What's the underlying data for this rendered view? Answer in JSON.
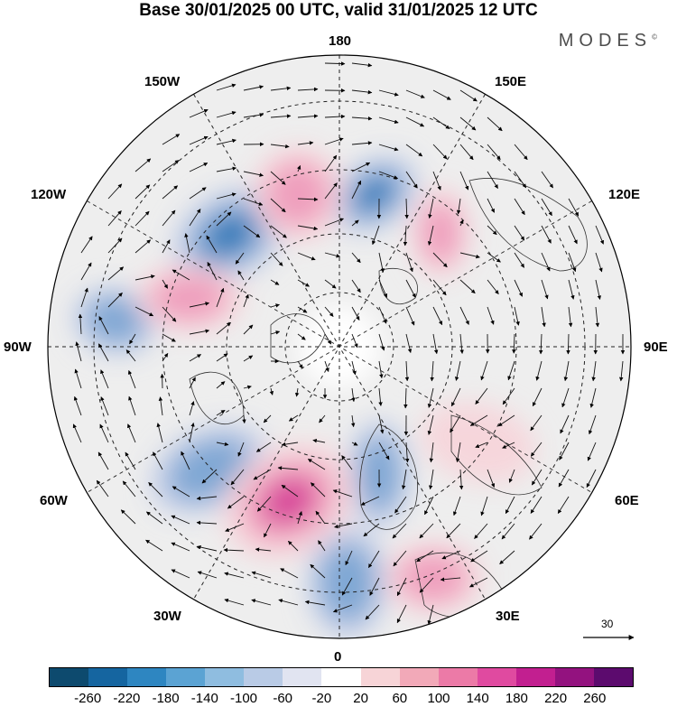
{
  "title": "Base 30/01/2025 00 UTC, valid 31/01/2025 12 UTC",
  "brand": "MODES",
  "brand_mark": "©",
  "longitude_labels": {
    "top": "180",
    "bottom": "0",
    "left": "90W",
    "right": "90E",
    "upper_left_1": "150W",
    "upper_left_2": "120W",
    "upper_right_1": "150E",
    "upper_right_2": "120E",
    "lower_left_1": "60W",
    "lower_left_2": "30W",
    "lower_right_1": "60E",
    "lower_right_2": "30E"
  },
  "vector_reference": "30",
  "colorbar": {
    "colors": [
      "#0d4a6e",
      "#1565a0",
      "#2e86c1",
      "#5ba3d3",
      "#8fbde0",
      "#b9cbe6",
      "#e1e4f1",
      "#ffffff",
      "#f7d4d7",
      "#f2a9b8",
      "#ec7aa7",
      "#e04aa0",
      "#c21f90",
      "#93127f",
      "#5c0b6e"
    ],
    "tick_labels": [
      "-260",
      "-220",
      "-180",
      "-140",
      "-100",
      "-60",
      "-20",
      "20",
      "60",
      "100",
      "140",
      "180",
      "220",
      "260"
    ]
  },
  "anomaly_features": [
    {
      "sign": "neg",
      "intensity": 3
    },
    {
      "sign": "neg",
      "intensity": 2
    },
    {
      "sign": "neg",
      "intensity": 2
    },
    {
      "sign": "neg",
      "intensity": 2
    },
    {
      "sign": "neg",
      "intensity": 3
    },
    {
      "sign": "neg",
      "intensity": 2
    },
    {
      "sign": "pos",
      "intensity": 3
    },
    {
      "sign": "pos",
      "intensity": 2
    },
    {
      "sign": "pos",
      "intensity": 2
    },
    {
      "sign": "pos",
      "intensity": 2
    },
    {
      "sign": "pos",
      "intensity": 2
    },
    {
      "sign": "pos",
      "intensity": 1
    }
  ]
}
